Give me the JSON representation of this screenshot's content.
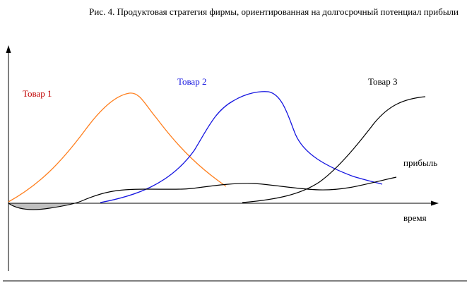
{
  "caption": "Рис. 4. Продуктовая стратегия фирмы, ориентированная на долгосрочный потенциал прибыли",
  "labels": {
    "product1": "Товар 1",
    "product2": "Товар 2",
    "product3": "Товар 3",
    "profit": "прибыль",
    "time": "время"
  },
  "colors": {
    "product1": "#ff7f1e",
    "product2": "#1515e0",
    "product3": "#000000",
    "profit": "#000000",
    "loss_fill": "#c0c0c0",
    "axis": "#000000"
  }
}
